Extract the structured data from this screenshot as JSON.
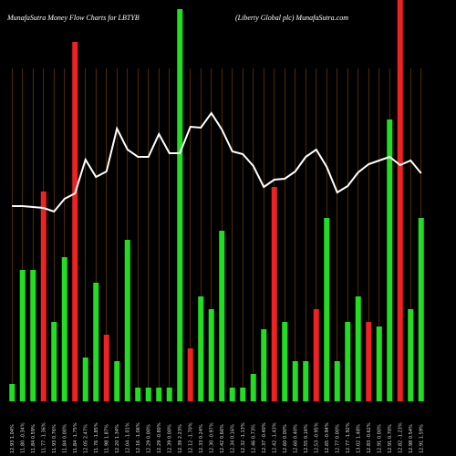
{
  "chart_data": {
    "type": "bar",
    "title": "MunafaSutra  Money Flow  Charts for LBTYB",
    "subtitle": "(Liberty Global plc) MunafaSutra.com",
    "categories": [
      "12.93 1.04%",
      "11.80 -0.34%",
      "11.84 0.59%",
      "11.77 -1.36%",
      "11.93 0.76%",
      "11.84 0.00%",
      "11.84 -1.75%",
      "12.05 2.47%",
      "11.76 -1.85%",
      "11.98 1.87%",
      "12.20 1.34%",
      "12.04 -1.01%",
      "12.16 -1.06%",
      "12.29 0.00%",
      "12.29 -0.80%",
      "12.39 0.00%",
      "12.39 2.23%",
      "12.12 -1.70%",
      "12.33 0.24%",
      "12.30 -0.97%",
      "12.42 0.66%",
      "12.34 0.16%",
      "12.32 -1.13%",
      "12.46 0.73%",
      "12.37 -0.40%",
      "12.42 -1.43%",
      "12.60 0.00%",
      "12.60 0.40%",
      "12.55 0.16%",
      "12.53 -0.95%",
      "12.65 -0.94%",
      "12.77 0.00%",
      "12.77 -1.92%",
      "13.02 1.48%",
      "12.83 -0.62%",
      "12.91 0.00%",
      "12.91 0.70%",
      "12.82 -1.23%",
      "12.98 0.54%",
      "12.91 1.59%"
    ],
    "series": [
      {
        "values": [
          19,
          144,
          144,
          230,
          87,
          158,
          394,
          48,
          130,
          73,
          44,
          177,
          15,
          15,
          15,
          15,
          430,
          58,
          115,
          101,
          187,
          15,
          15,
          30,
          79,
          235,
          87,
          44,
          44,
          101,
          201,
          44,
          87,
          115,
          87,
          82,
          309,
          440,
          101,
          201
        ],
        "colors": [
          "#22dd22",
          "#22dd22",
          "#22dd22",
          "#ee2222",
          "#22dd22",
          "#22dd22",
          "#ee2222",
          "#22dd22",
          "#22dd22",
          "#ee2222",
          "#22dd22",
          "#22dd22",
          "#22dd22",
          "#22dd22",
          "#22dd22",
          "#22dd22",
          "#22dd22",
          "#ee2222",
          "#22dd22",
          "#22dd22",
          "#22dd22",
          "#22dd22",
          "#22dd22",
          "#22dd22",
          "#22dd22",
          "#ee2222",
          "#22dd22",
          "#22dd22",
          "#22dd22",
          "#ee2222",
          "#22dd22",
          "#22dd22",
          "#22dd22",
          "#22dd22",
          "#ee2222",
          "#22dd22",
          "#22dd22",
          "#ee2222",
          "#22dd22",
          "#22dd22"
        ]
      },
      {
        "type": "line",
        "color": "#ffffff",
        "values": [
          214,
          214,
          213,
          212,
          208,
          222,
          228,
          265,
          246,
          252,
          299,
          276,
          268,
          268,
          293,
          272,
          272,
          301,
          300,
          316,
          298,
          274,
          271,
          258,
          235,
          243,
          244,
          252,
          268,
          276,
          257,
          229,
          236,
          251,
          260,
          264,
          268,
          259,
          264,
          250
        ]
      }
    ],
    "ylim": [
      0,
      440
    ]
  }
}
